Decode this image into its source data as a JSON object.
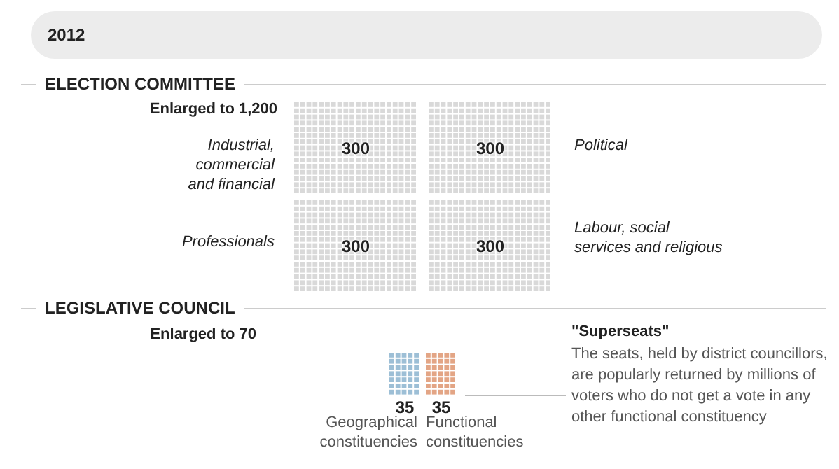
{
  "chart_data": [
    {
      "type": "other",
      "title": "ELECTION COMMITTEE",
      "subtitle": "Enlarged to 1,200",
      "categories": [
        "Industrial, commercial and financial",
        "Political",
        "Professionals",
        "Labour, social services and religious"
      ],
      "values": [
        300,
        300,
        300,
        300
      ],
      "colors": [
        "#d9d9d9",
        "#d9d9d9",
        "#d9d9d9",
        "#d9d9d9"
      ],
      "data_labels": true,
      "annotations": [
        "2012"
      ]
    },
    {
      "type": "other",
      "title": "LEGISLATIVE COUNCIL",
      "subtitle": "Enlarged to 70",
      "categories": [
        "Geographical constituencies",
        "Functional constituencies"
      ],
      "values": [
        35,
        35
      ],
      "colors": [
        "#9dbfd6",
        "#e3a585"
      ],
      "data_labels": true,
      "annotations": [
        "\"Superseats\"",
        "The seats, held by district councillors, are popularly returned by millions of voters who do not get a vote in any other functional constituency"
      ]
    }
  ]
}
